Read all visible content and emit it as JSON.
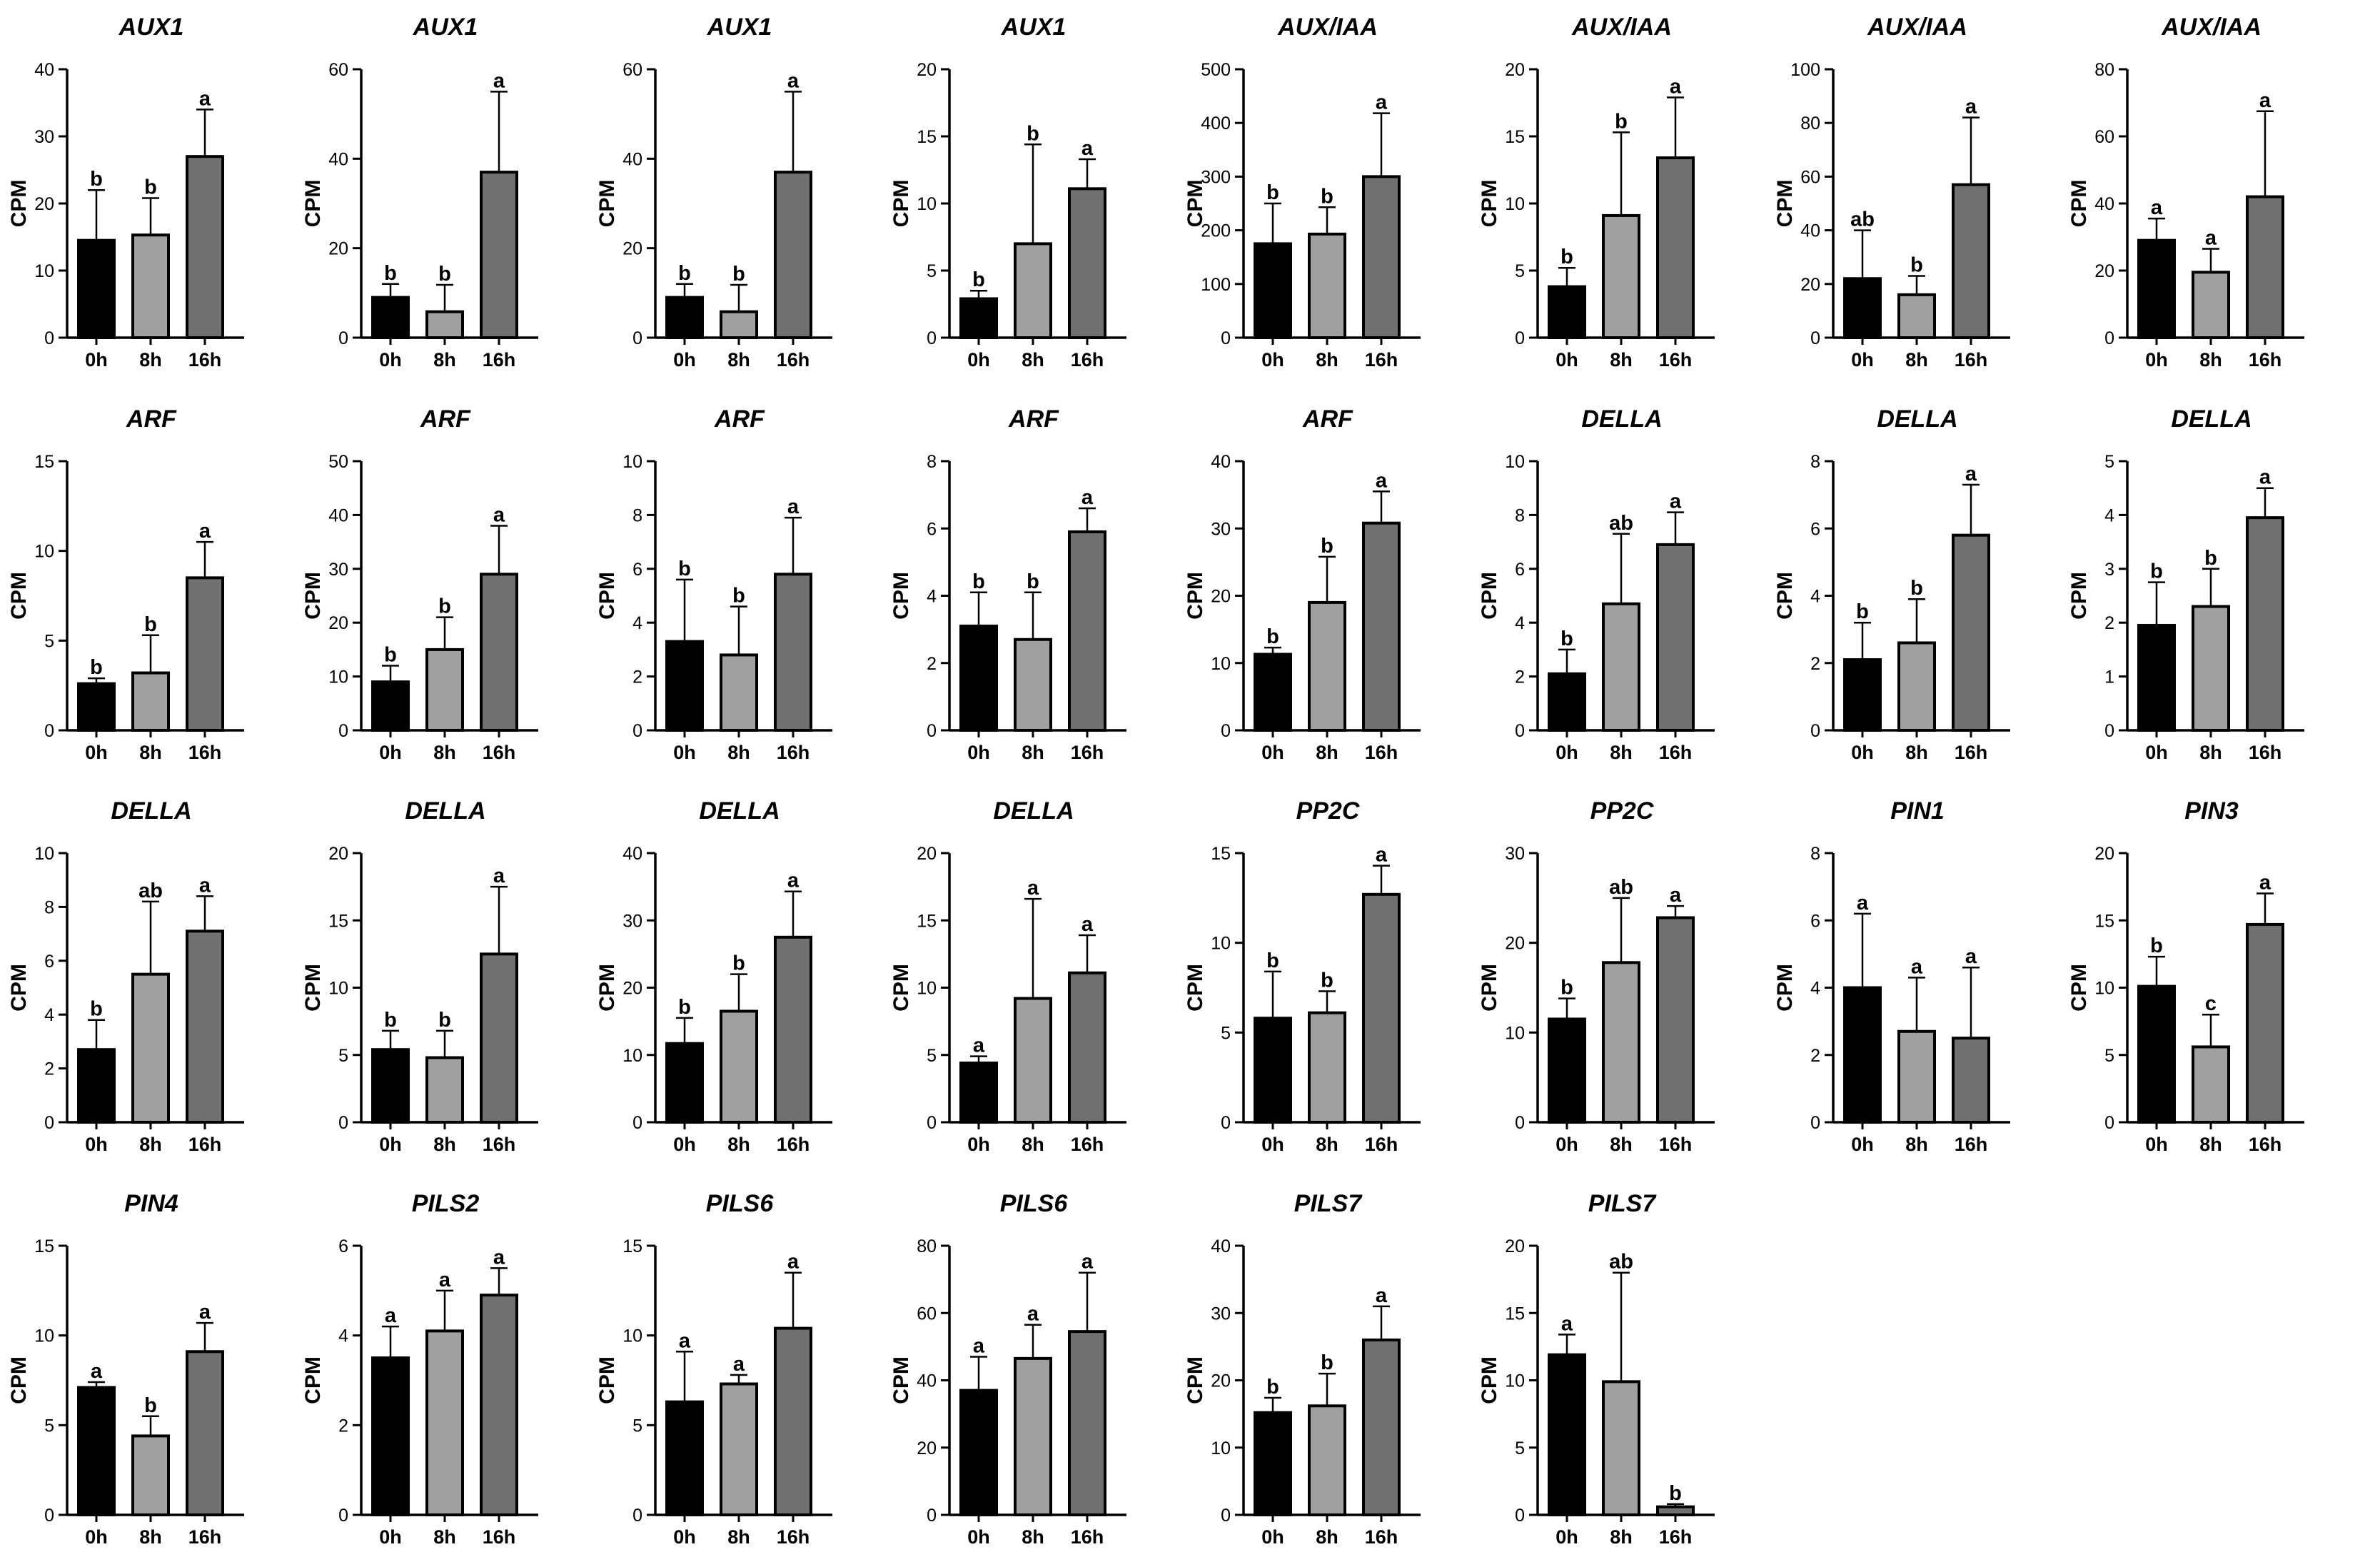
{
  "chart_data": [
    {
      "type": "bar",
      "title": "AUX1",
      "ylabel": "CPM",
      "categories": [
        "0h",
        "8h",
        "16h"
      ],
      "values": [
        14.5,
        15.3,
        27
      ],
      "errors": [
        7.5,
        5.5,
        7
      ],
      "letters": [
        "b",
        "b",
        "a"
      ],
      "ylim": [
        0,
        40
      ],
      "yticks": [
        "0",
        "10",
        "20",
        "30",
        "40"
      ],
      "bar_colors": [
        "#000000",
        "#a0a0a0",
        "#707070"
      ]
    },
    {
      "type": "bar",
      "title": "AUX1",
      "ylabel": "CPM",
      "categories": [
        "0h",
        "8h",
        "16h"
      ],
      "values": [
        9,
        5.8,
        37
      ],
      "errors": [
        3,
        6,
        18
      ],
      "letters": [
        "b",
        "b",
        "a"
      ],
      "ylim": [
        0,
        60
      ],
      "yticks": [
        "0",
        "20",
        "40",
        "60"
      ],
      "bar_colors": [
        "#000000",
        "#a0a0a0",
        "#707070"
      ]
    },
    {
      "type": "bar",
      "title": "AUX1",
      "ylabel": "CPM",
      "categories": [
        "0h",
        "8h",
        "16h"
      ],
      "values": [
        9,
        5.8,
        37
      ],
      "errors": [
        3,
        6,
        18
      ],
      "letters": [
        "b",
        "b",
        "a"
      ],
      "ylim": [
        0,
        60
      ],
      "yticks": [
        "0",
        "20",
        "40",
        "60"
      ],
      "bar_colors": [
        "#000000",
        "#a0a0a0",
        "#707070"
      ]
    },
    {
      "type": "bar",
      "title": "AUX1",
      "ylabel": "CPM",
      "categories": [
        "0h",
        "8h",
        "16h"
      ],
      "values": [
        2.9,
        7,
        11.1
      ],
      "errors": [
        0.6,
        7.4,
        2.2
      ],
      "letters": [
        "b",
        "b",
        "a"
      ],
      "ylim": [
        0,
        20
      ],
      "yticks": [
        "0",
        "5",
        "10",
        "15",
        "20"
      ],
      "bar_colors": [
        "#000000",
        "#a0a0a0",
        "#707070"
      ]
    },
    {
      "type": "bar",
      "title": "AUX/IAA",
      "ylabel": "CPM",
      "categories": [
        "0h",
        "8h",
        "16h"
      ],
      "values": [
        175,
        193,
        300
      ],
      "errors": [
        75,
        50,
        118
      ],
      "letters": [
        "b",
        "b",
        "a"
      ],
      "ylim": [
        0,
        500
      ],
      "yticks": [
        "0",
        "100",
        "200",
        "300",
        "400",
        "500"
      ],
      "bar_colors": [
        "#000000",
        "#a0a0a0",
        "#707070"
      ]
    },
    {
      "type": "bar",
      "title": "AUX/IAA",
      "ylabel": "CPM",
      "categories": [
        "0h",
        "8h",
        "16h"
      ],
      "values": [
        3.8,
        9.1,
        13.4
      ],
      "errors": [
        1.4,
        6.2,
        4.5
      ],
      "letters": [
        "b",
        "b",
        "a"
      ],
      "ylim": [
        0,
        20
      ],
      "yticks": [
        "0",
        "5",
        "10",
        "15",
        "20"
      ],
      "bar_colors": [
        "#000000",
        "#a0a0a0",
        "#707070"
      ]
    },
    {
      "type": "bar",
      "title": "AUX/IAA",
      "ylabel": "CPM",
      "categories": [
        "0h",
        "8h",
        "16h"
      ],
      "values": [
        22,
        16,
        57
      ],
      "errors": [
        18,
        7,
        25
      ],
      "letters": [
        "ab",
        "b",
        "a"
      ],
      "ylim": [
        0,
        100
      ],
      "yticks": [
        "0",
        "20",
        "40",
        "60",
        "80",
        "100"
      ],
      "bar_colors": [
        "#000000",
        "#a0a0a0",
        "#707070"
      ]
    },
    {
      "type": "bar",
      "title": "AUX/IAA",
      "ylabel": "CPM",
      "categories": [
        "0h",
        "8h",
        "16h"
      ],
      "values": [
        29,
        19.5,
        42
      ],
      "errors": [
        6.5,
        7,
        25.5
      ],
      "letters": [
        "a",
        "a",
        "a"
      ],
      "ylim": [
        0,
        80
      ],
      "yticks": [
        "0",
        "20",
        "40",
        "60",
        "80"
      ],
      "bar_colors": [
        "#000000",
        "#a0a0a0",
        "#707070"
      ]
    },
    {
      "type": "bar",
      "title": "ARF",
      "ylabel": "CPM",
      "categories": [
        "0h",
        "8h",
        "16h"
      ],
      "values": [
        2.6,
        3.2,
        8.5
      ],
      "errors": [
        0.3,
        2.1,
        2
      ],
      "letters": [
        "b",
        "b",
        "a"
      ],
      "ylim": [
        0,
        15
      ],
      "yticks": [
        "0",
        "5",
        "10",
        "15"
      ],
      "bar_colors": [
        "#000000",
        "#a0a0a0",
        "#707070"
      ]
    },
    {
      "type": "bar",
      "title": "ARF",
      "ylabel": "CPM",
      "categories": [
        "0h",
        "8h",
        "16h"
      ],
      "values": [
        9,
        15,
        29
      ],
      "errors": [
        3,
        6,
        9
      ],
      "letters": [
        "b",
        "b",
        "a"
      ],
      "ylim": [
        0,
        50
      ],
      "yticks": [
        "0",
        "10",
        "20",
        "30",
        "40",
        "50"
      ],
      "bar_colors": [
        "#000000",
        "#a0a0a0",
        "#707070"
      ]
    },
    {
      "type": "bar",
      "title": "ARF",
      "ylabel": "CPM",
      "categories": [
        "0h",
        "8h",
        "16h"
      ],
      "values": [
        3.3,
        2.8,
        5.8
      ],
      "errors": [
        2.3,
        1.8,
        2.1
      ],
      "letters": [
        "b",
        "b",
        "a"
      ],
      "ylim": [
        0,
        10
      ],
      "yticks": [
        "0",
        "2",
        "4",
        "6",
        "8",
        "10"
      ],
      "bar_colors": [
        "#000000",
        "#a0a0a0",
        "#707070"
      ]
    },
    {
      "type": "bar",
      "title": "ARF",
      "ylabel": "CPM",
      "categories": [
        "0h",
        "8h",
        "16h"
      ],
      "values": [
        3.1,
        2.7,
        5.9
      ],
      "errors": [
        1,
        1.4,
        0.7
      ],
      "letters": [
        "b",
        "b",
        "a"
      ],
      "ylim": [
        0,
        8
      ],
      "yticks": [
        "0",
        "2",
        "4",
        "6",
        "8"
      ],
      "bar_colors": [
        "#000000",
        "#a0a0a0",
        "#707070"
      ]
    },
    {
      "type": "bar",
      "title": "ARF",
      "ylabel": "CPM",
      "categories": [
        "0h",
        "8h",
        "16h"
      ],
      "values": [
        11.3,
        19,
        30.8
      ],
      "errors": [
        1,
        6.8,
        4.7
      ],
      "letters": [
        "b",
        "b",
        "a"
      ],
      "ylim": [
        0,
        40
      ],
      "yticks": [
        "0",
        "10",
        "20",
        "30",
        "40"
      ],
      "bar_colors": [
        "#000000",
        "#a0a0a0",
        "#707070"
      ]
    },
    {
      "type": "bar",
      "title": "DELLA",
      "ylabel": "CPM",
      "categories": [
        "0h",
        "8h",
        "16h"
      ],
      "values": [
        2.1,
        4.7,
        6.9
      ],
      "errors": [
        0.9,
        2.6,
        1.2
      ],
      "letters": [
        "b",
        "ab",
        "a"
      ],
      "ylim": [
        0,
        10
      ],
      "yticks": [
        "0",
        "2",
        "4",
        "6",
        "8",
        "10"
      ],
      "bar_colors": [
        "#000000",
        "#a0a0a0",
        "#707070"
      ]
    },
    {
      "type": "bar",
      "title": "DELLA",
      "ylabel": "CPM",
      "categories": [
        "0h",
        "8h",
        "16h"
      ],
      "values": [
        2.1,
        2.6,
        5.8
      ],
      "errors": [
        1.1,
        1.3,
        1.5
      ],
      "letters": [
        "b",
        "b",
        "a"
      ],
      "ylim": [
        0,
        8
      ],
      "yticks": [
        "0",
        "2",
        "4",
        "6",
        "8"
      ],
      "bar_colors": [
        "#000000",
        "#a0a0a0",
        "#707070"
      ]
    },
    {
      "type": "bar",
      "title": "DELLA",
      "ylabel": "CPM",
      "categories": [
        "0h",
        "8h",
        "16h"
      ],
      "values": [
        1.95,
        2.3,
        3.95
      ],
      "errors": [
        0.8,
        0.7,
        0.55
      ],
      "letters": [
        "b",
        "b",
        "a"
      ],
      "ylim": [
        0,
        5
      ],
      "yticks": [
        "0",
        "1",
        "2",
        "3",
        "4",
        "5"
      ],
      "bar_colors": [
        "#000000",
        "#a0a0a0",
        "#707070"
      ]
    },
    {
      "type": "bar",
      "title": "DELLA",
      "ylabel": "CPM",
      "categories": [
        "0h",
        "8h",
        "16h"
      ],
      "values": [
        2.7,
        5.5,
        7.1
      ],
      "errors": [
        1.1,
        2.7,
        1.3
      ],
      "letters": [
        "b",
        "ab",
        "a"
      ],
      "ylim": [
        0,
        10
      ],
      "yticks": [
        "0",
        "2",
        "4",
        "6",
        "8",
        "10"
      ],
      "bar_colors": [
        "#000000",
        "#a0a0a0",
        "#707070"
      ]
    },
    {
      "type": "bar",
      "title": "DELLA",
      "ylabel": "CPM",
      "categories": [
        "0h",
        "8h",
        "16h"
      ],
      "values": [
        5.4,
        4.8,
        12.5
      ],
      "errors": [
        1.4,
        2,
        5
      ],
      "letters": [
        "b",
        "b",
        "a"
      ],
      "ylim": [
        0,
        20
      ],
      "yticks": [
        "0",
        "5",
        "10",
        "15",
        "20"
      ],
      "bar_colors": [
        "#000000",
        "#a0a0a0",
        "#707070"
      ]
    },
    {
      "type": "bar",
      "title": "DELLA",
      "ylabel": "CPM",
      "categories": [
        "0h",
        "8h",
        "16h"
      ],
      "values": [
        11.7,
        16.5,
        27.5
      ],
      "errors": [
        3.8,
        5.5,
        6.8
      ],
      "letters": [
        "b",
        "b",
        "a"
      ],
      "ylim": [
        0,
        40
      ],
      "yticks": [
        "0",
        "10",
        "20",
        "30",
        "40"
      ],
      "bar_colors": [
        "#000000",
        "#a0a0a0",
        "#707070"
      ]
    },
    {
      "type": "bar",
      "title": "DELLA",
      "ylabel": "CPM",
      "categories": [
        "0h",
        "8h",
        "16h"
      ],
      "values": [
        4.4,
        9.2,
        11.1
      ],
      "errors": [
        0.5,
        7.4,
        2.8
      ],
      "letters": [
        "a",
        "a",
        "a"
      ],
      "ylim": [
        0,
        20
      ],
      "yticks": [
        "0",
        "5",
        "10",
        "15",
        "20"
      ],
      "bar_colors": [
        "#000000",
        "#a0a0a0",
        "#707070"
      ]
    },
    {
      "type": "bar",
      "title": "PP2C",
      "ylabel": "CPM",
      "categories": [
        "0h",
        "8h",
        "16h"
      ],
      "values": [
        5.8,
        6.1,
        12.7
      ],
      "errors": [
        2.6,
        1.2,
        1.6
      ],
      "letters": [
        "b",
        "b",
        "a"
      ],
      "ylim": [
        0,
        15
      ],
      "yticks": [
        "0",
        "5",
        "10",
        "15"
      ],
      "bar_colors": [
        "#000000",
        "#a0a0a0",
        "#707070"
      ]
    },
    {
      "type": "bar",
      "title": "PP2C",
      "ylabel": "CPM",
      "categories": [
        "0h",
        "8h",
        "16h"
      ],
      "values": [
        11.5,
        17.8,
        22.8
      ],
      "errors": [
        2.3,
        7.2,
        1.3
      ],
      "letters": [
        "b",
        "ab",
        "a"
      ],
      "ylim": [
        0,
        30
      ],
      "yticks": [
        "0",
        "10",
        "20",
        "30"
      ],
      "bar_colors": [
        "#000000",
        "#a0a0a0",
        "#707070"
      ]
    },
    {
      "type": "bar",
      "title": "PIN1",
      "ylabel": "CPM",
      "categories": [
        "0h",
        "8h",
        "16h"
      ],
      "values": [
        4,
        2.7,
        2.5
      ],
      "errors": [
        2.2,
        1.6,
        2.1
      ],
      "letters": [
        "a",
        "a",
        "a"
      ],
      "ylim": [
        0,
        8
      ],
      "yticks": [
        "0",
        "2",
        "4",
        "6",
        "8"
      ],
      "bar_colors": [
        "#000000",
        "#a0a0a0",
        "#707070"
      ]
    },
    {
      "type": "bar",
      "title": "PIN3",
      "ylabel": "CPM",
      "categories": [
        "0h",
        "8h",
        "16h"
      ],
      "values": [
        10.1,
        5.6,
        14.7
      ],
      "errors": [
        2.2,
        2.4,
        2.3
      ],
      "letters": [
        "b",
        "c",
        "a"
      ],
      "ylim": [
        0,
        20
      ],
      "yticks": [
        "0",
        "5",
        "10",
        "15",
        "20"
      ],
      "bar_colors": [
        "#000000",
        "#a0a0a0",
        "#707070"
      ]
    },
    {
      "type": "bar",
      "title": "PIN4",
      "ylabel": "CPM",
      "categories": [
        "0h",
        "8h",
        "16h"
      ],
      "values": [
        7.1,
        4.4,
        9.1
      ],
      "errors": [
        0.3,
        1.1,
        1.6
      ],
      "letters": [
        "a",
        "b",
        "a"
      ],
      "ylim": [
        0,
        15
      ],
      "yticks": [
        "0",
        "5",
        "10",
        "15"
      ],
      "bar_colors": [
        "#000000",
        "#a0a0a0",
        "#707070"
      ]
    },
    {
      "type": "bar",
      "title": "PILS2",
      "ylabel": "CPM",
      "categories": [
        "0h",
        "8h",
        "16h"
      ],
      "values": [
        3.5,
        4.1,
        4.9
      ],
      "errors": [
        0.7,
        0.9,
        0.6
      ],
      "letters": [
        "a",
        "a",
        "a"
      ],
      "ylim": [
        0,
        6
      ],
      "yticks": [
        "0",
        "2",
        "4",
        "6"
      ],
      "bar_colors": [
        "#000000",
        "#a0a0a0",
        "#707070"
      ]
    },
    {
      "type": "bar",
      "title": "PILS6",
      "ylabel": "CPM",
      "categories": [
        "0h",
        "8h",
        "16h"
      ],
      "values": [
        6.3,
        7.3,
        10.4
      ],
      "errors": [
        2.8,
        0.5,
        3.1
      ],
      "letters": [
        "a",
        "a",
        "a"
      ],
      "ylim": [
        0,
        15
      ],
      "yticks": [
        "0",
        "5",
        "10",
        "15"
      ],
      "bar_colors": [
        "#000000",
        "#a0a0a0",
        "#707070"
      ]
    },
    {
      "type": "bar",
      "title": "PILS6",
      "ylabel": "CPM",
      "categories": [
        "0h",
        "8h",
        "16h"
      ],
      "values": [
        37,
        46.5,
        54.5
      ],
      "errors": [
        10,
        10,
        17.5
      ],
      "letters": [
        "a",
        "a",
        "a"
      ],
      "ylim": [
        0,
        80
      ],
      "yticks": [
        "0",
        "20",
        "40",
        "60",
        "80"
      ],
      "bar_colors": [
        "#000000",
        "#a0a0a0",
        "#707070"
      ]
    },
    {
      "type": "bar",
      "title": "PILS7",
      "ylabel": "CPM",
      "categories": [
        "0h",
        "8h",
        "16h"
      ],
      "values": [
        15.2,
        16.2,
        26
      ],
      "errors": [
        2.2,
        4.8,
        5
      ],
      "letters": [
        "b",
        "b",
        "a"
      ],
      "ylim": [
        0,
        40
      ],
      "yticks": [
        "0",
        "10",
        "20",
        "30",
        "40"
      ],
      "bar_colors": [
        "#000000",
        "#a0a0a0",
        "#707070"
      ]
    },
    {
      "type": "bar",
      "title": "PILS7",
      "ylabel": "CPM",
      "categories": [
        "0h",
        "8h",
        "16h"
      ],
      "values": [
        11.9,
        9.9,
        0.6
      ],
      "errors": [
        1.5,
        8.1,
        0.2
      ],
      "letters": [
        "a",
        "ab",
        "b"
      ],
      "ylim": [
        0,
        20
      ],
      "yticks": [
        "0",
        "5",
        "10",
        "15",
        "20"
      ],
      "bar_colors": [
        "#000000",
        "#a0a0a0",
        "#707070"
      ]
    }
  ]
}
